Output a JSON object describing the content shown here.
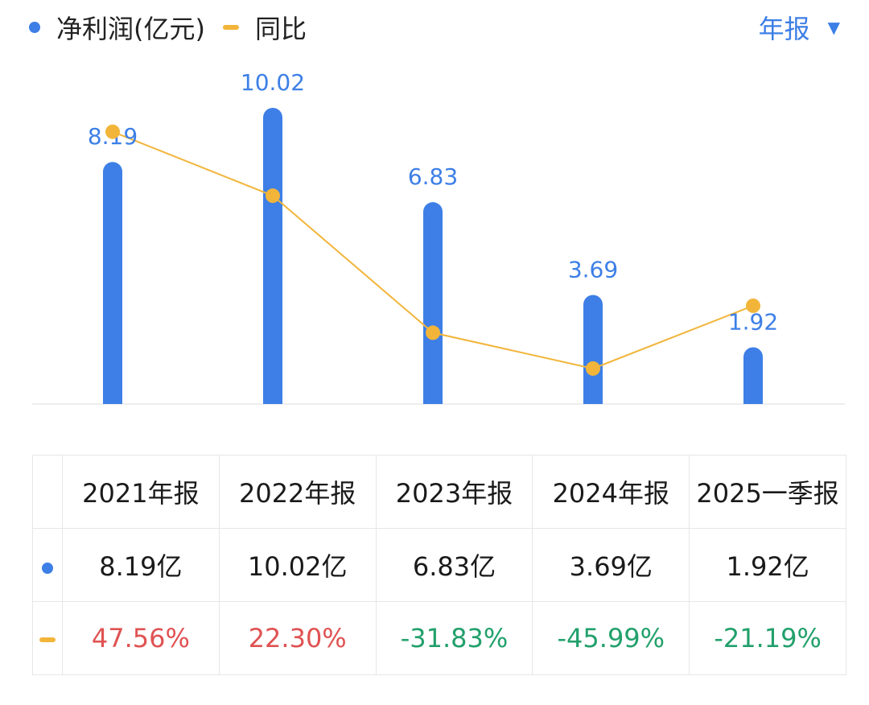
{
  "colors": {
    "bar": "#3d7fe6",
    "line": "#f2b53a",
    "label": "#3d7fe6",
    "positive": "#e05252",
    "negative": "#22a06b",
    "axis": "#dddddd"
  },
  "legend": {
    "bar_label": "净利润(亿元)",
    "line_label": "同比"
  },
  "period_selector": {
    "label": "年报",
    "icon": "caret-down-icon"
  },
  "chart_data": {
    "type": "bar",
    "categories": [
      "2021年报",
      "2022年报",
      "2023年报",
      "2024年报",
      "2025一季报"
    ],
    "series": [
      {
        "name": "净利润(亿元)",
        "type": "bar",
        "values": [
          8.19,
          10.02,
          6.83,
          3.69,
          1.92
        ],
        "labels": [
          "8.19",
          "10.02",
          "6.83",
          "3.69",
          "1.92"
        ]
      },
      {
        "name": "同比",
        "type": "line",
        "values": [
          47.56,
          22.3,
          -31.83,
          -45.99,
          -21.19
        ]
      }
    ],
    "ylim": [
      0,
      10.02
    ],
    "y2lim": [
      -60,
      57
    ],
    "grid": false,
    "legend_position": "top-left"
  },
  "table": {
    "headers": [
      "2021年报",
      "2022年报",
      "2023年报",
      "2024年报",
      "2025一季报"
    ],
    "profit_row": [
      "8.19亿",
      "10.02亿",
      "6.83亿",
      "3.69亿",
      "1.92亿"
    ],
    "yoy_row": [
      "47.56%",
      "22.30%",
      "-31.83%",
      "-45.99%",
      "-21.19%"
    ]
  }
}
